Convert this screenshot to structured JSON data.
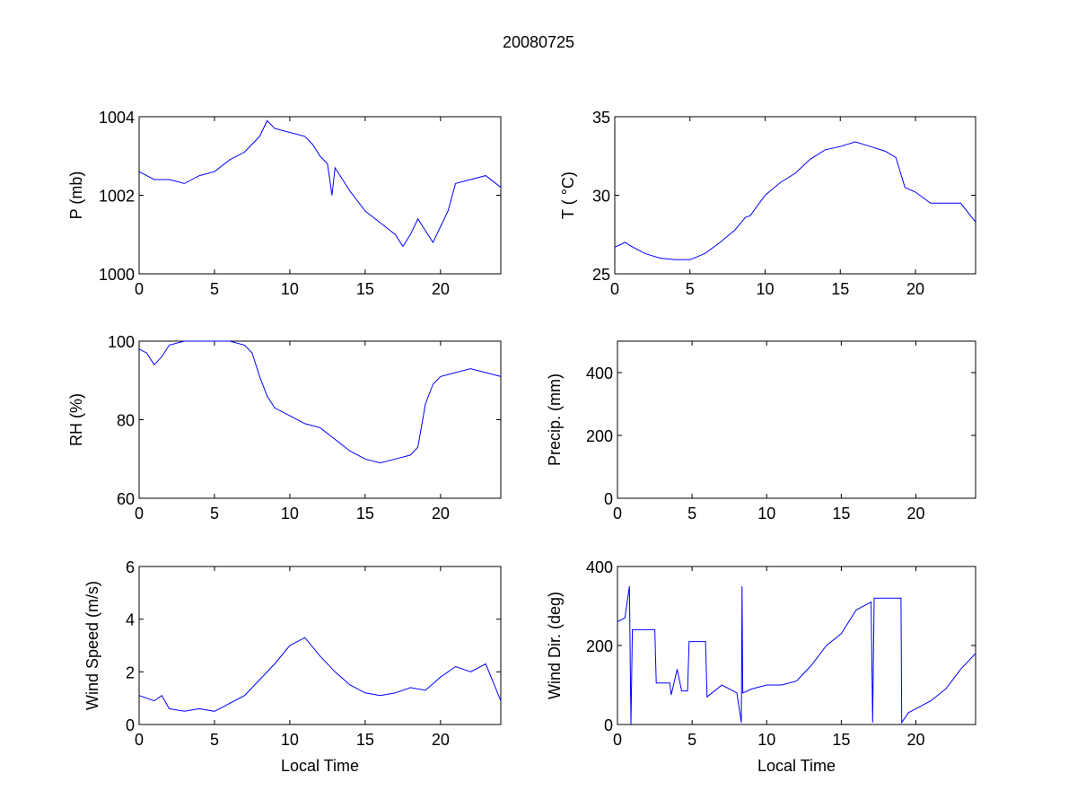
{
  "chart_data": {
    "title": "20080725",
    "line_color": "#0000ff",
    "panels": [
      {
        "type": "line",
        "ylabel": "P (mb)",
        "xlabel": "",
        "xlim": [
          0,
          24
        ],
        "ylim": [
          1000,
          1004
        ],
        "xticks": [
          0,
          5,
          10,
          15,
          20
        ],
        "yticks": [
          1000,
          1002,
          1004
        ],
        "x": [
          0,
          0.5,
          1,
          2,
          3,
          4,
          5,
          6,
          7,
          7.5,
          8,
          8.5,
          9,
          10,
          11,
          11.5,
          12,
          12.5,
          12.8,
          13,
          14,
          15,
          16,
          17,
          17.5,
          18,
          18.5,
          19,
          19.5,
          20,
          20.5,
          21,
          22,
          23,
          24
        ],
        "y": [
          1002.6,
          1002.5,
          1002.4,
          1002.4,
          1002.3,
          1002.5,
          1002.6,
          1002.9,
          1003.1,
          1003.3,
          1003.5,
          1003.9,
          1003.7,
          1003.6,
          1003.5,
          1003.3,
          1003.0,
          1002.8,
          1002.0,
          1002.7,
          1002.1,
          1001.6,
          1001.3,
          1001.0,
          1000.7,
          1001.0,
          1001.4,
          1001.1,
          1000.8,
          1001.2,
          1001.6,
          1002.3,
          1002.4,
          1002.5,
          1002.2
        ]
      },
      {
        "type": "line",
        "ylabel": "T ( °C)",
        "xlabel": "",
        "xlim": [
          0,
          24
        ],
        "ylim": [
          25,
          35
        ],
        "xticks": [
          0,
          5,
          10,
          15,
          20
        ],
        "yticks": [
          25,
          30,
          35
        ],
        "x": [
          0,
          0.7,
          1,
          2,
          3,
          4,
          5,
          6,
          7,
          8,
          8.7,
          9,
          10,
          11,
          12,
          13,
          14,
          15,
          16,
          17,
          18,
          18.7,
          19.3,
          20,
          21,
          22,
          23,
          24
        ],
        "y": [
          26.7,
          27.0,
          26.8,
          26.3,
          26.0,
          25.9,
          25.9,
          26.3,
          27.0,
          27.8,
          28.6,
          28.7,
          30.0,
          30.8,
          31.4,
          32.3,
          32.9,
          33.1,
          33.4,
          33.1,
          32.8,
          32.4,
          30.5,
          30.2,
          29.5,
          29.5,
          29.5,
          28.3
        ]
      },
      {
        "type": "line",
        "ylabel": "RH (%)",
        "xlabel": "",
        "xlim": [
          0,
          24
        ],
        "ylim": [
          60,
          100
        ],
        "xticks": [
          0,
          5,
          10,
          15,
          20
        ],
        "yticks": [
          60,
          80,
          100
        ],
        "x": [
          0,
          0.5,
          1,
          1.5,
          2,
          3,
          4,
          5,
          6,
          7,
          7.5,
          8,
          8.5,
          9,
          10,
          11,
          12,
          13,
          14,
          15,
          16,
          17,
          18,
          18.5,
          19,
          19.5,
          20,
          21,
          22,
          23,
          24
        ],
        "y": [
          98,
          97,
          94,
          96,
          99,
          100,
          100,
          100,
          100,
          99,
          97,
          91,
          86,
          83,
          81,
          79,
          78,
          75,
          72,
          70,
          69,
          70,
          71,
          73,
          84,
          89,
          91,
          92,
          93,
          92,
          91
        ]
      },
      {
        "type": "line",
        "ylabel": "Precip. (mm)",
        "xlabel": "",
        "xlim": [
          0,
          24
        ],
        "ylim": [
          0,
          500
        ],
        "xticks": [
          0,
          5,
          10,
          15,
          20
        ],
        "yticks": [
          0,
          200,
          400
        ],
        "x": [],
        "y": []
      },
      {
        "type": "line",
        "ylabel": "Wind Speed (m/s)",
        "xlabel": "Local Time",
        "xlim": [
          0,
          24
        ],
        "ylim": [
          0,
          6
        ],
        "xticks": [
          0,
          5,
          10,
          15,
          20
        ],
        "yticks": [
          0,
          2,
          4,
          6
        ],
        "x": [
          0,
          1,
          1.5,
          2,
          3,
          4,
          5,
          6,
          7,
          8,
          9,
          10,
          11,
          12,
          13,
          14,
          15,
          16,
          17,
          18,
          19,
          20,
          21,
          22,
          23,
          24
        ],
        "y": [
          1.1,
          0.9,
          1.1,
          0.6,
          0.5,
          0.6,
          0.5,
          0.8,
          1.1,
          1.7,
          2.3,
          3.0,
          3.3,
          2.6,
          2.0,
          1.5,
          1.2,
          1.1,
          1.2,
          1.4,
          1.3,
          1.8,
          2.2,
          2.0,
          2.3,
          0.9
        ]
      },
      {
        "type": "line",
        "ylabel": "Wind Dir. (deg)",
        "xlabel": "Local Time",
        "xlim": [
          0,
          24
        ],
        "ylim": [
          0,
          400
        ],
        "xticks": [
          0,
          5,
          10,
          15,
          20
        ],
        "yticks": [
          0,
          200,
          400
        ],
        "x": [
          0,
          0.5,
          0.8,
          0.9,
          1,
          2.5,
          2.6,
          3.5,
          3.6,
          4,
          4.3,
          4.7,
          4.8,
          5.9,
          6,
          7,
          8,
          8.3,
          8.35,
          8.4,
          9,
          10,
          11,
          12,
          13,
          14,
          15,
          16,
          17,
          17.1,
          17.2,
          18,
          19,
          19.05,
          19.5,
          20,
          21,
          22,
          23,
          24
        ],
        "y": [
          260,
          270,
          350,
          0,
          240,
          240,
          105,
          105,
          75,
          140,
          85,
          85,
          210,
          210,
          70,
          100,
          80,
          5,
          350,
          80,
          90,
          100,
          100,
          110,
          150,
          200,
          230,
          290,
          310,
          5,
          320,
          320,
          320,
          5,
          30,
          40,
          60,
          90,
          140,
          180
        ]
      }
    ]
  }
}
